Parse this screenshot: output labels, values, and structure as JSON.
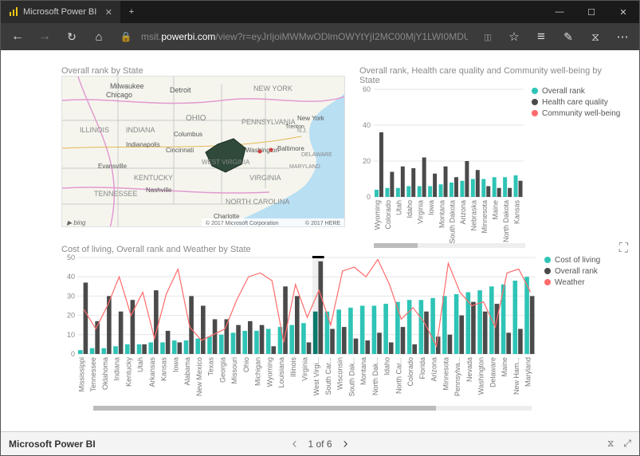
{
  "browser": {
    "tab_title": "Microsoft Power BI",
    "url_prefix": "msit.",
    "url_host": "powerbi.com",
    "url_path": "/view?r=eyJrIjoiMWMwODlmOWYtYjI2MC00MjY1LWI0MDUtYmNkODRiMTU",
    "window_min": "—",
    "window_max": "☐",
    "window_close": "✕",
    "new_tab": "+",
    "tab_close": "✕",
    "nav_back": "←",
    "nav_fwd": "→",
    "nav_reload": "↻",
    "nav_home": "⌂",
    "nav_lock": "🔒",
    "tb_book": "▯▯",
    "tb_star": "☆",
    "tb_menu": "≡",
    "tb_note": "✎",
    "tb_bell": "⧖",
    "tb_more": "⋯"
  },
  "pager": {
    "title": "Microsoft Power BI",
    "prev": "‹",
    "page": "1 of 6",
    "next": "›",
    "bot": "⧖",
    "full": "⤢"
  },
  "map_tile": {
    "title": "Overall rank by State",
    "credits1": "© 2017 Microsoft Corporation",
    "credits2": "© 2017 HERE",
    "bing": "▶ bing",
    "labels": {
      "milwaukee": "Milwaukee",
      "chicago": "Chicago",
      "detroit": "Detroit",
      "newyork": "NEW YORK",
      "illinois": "ILLINOIS",
      "indiana": "INDIANA",
      "ohio": "OHIO",
      "columbus": "Columbus",
      "pennsylvania": "PENNSYLVANIA",
      "indianapolis": "Indianapolis",
      "cincinnati": "Cincinnati",
      "trenton": "Trenton",
      "nj": "N.J.",
      "newyorkcity": "New York",
      "washington": "Washington",
      "baltimore": "Baltimore",
      "delaware": "DELAWARE",
      "evansville": "Evansville",
      "westvirginia": "WEST VIRGINIA",
      "maryland": "MARYLAND",
      "kentucky": "KENTUCKY",
      "virginia": "VIRGINIA",
      "tennessee": "TENNESSEE",
      "nashville": "Nashville",
      "northcarolina": "NORTH CAROLINA",
      "charlotte": "Charlotte"
    },
    "colors": {
      "water": "#b8dff2",
      "land": "#f5f5ee",
      "road": "#e29ad0",
      "road2": "#e6b852",
      "border": "#c9c9c9",
      "highlight": "#2f4a3a"
    }
  },
  "chart2": {
    "title": "Overall rank, Health care quality and Community well-being by State",
    "ylim": [
      0,
      60
    ],
    "yticks": [
      0,
      20,
      40,
      60
    ],
    "gridColor": "#e6e6e6",
    "barGap": 2,
    "legend": [
      {
        "label": "Overall rank",
        "color": "#2ec4b6"
      },
      {
        "label": "Health care quality",
        "color": "#4a4a4a"
      },
      {
        "label": "Community well-being",
        "color": "#ff6b6b"
      }
    ],
    "categories": [
      "Wyoming",
      "Colorado",
      "Utah",
      "Idaho",
      "Virginia",
      "Iowa",
      "Montana",
      "South Dakota",
      "Arizona",
      "Nebraska",
      "Minnesota",
      "Maine",
      "North Dakota",
      "Kansas"
    ],
    "series": {
      "overall": [
        4,
        5,
        5,
        6,
        6,
        6,
        7,
        8,
        9,
        10,
        10,
        11,
        11,
        12
      ],
      "health": [
        36,
        14,
        17,
        16,
        22,
        13,
        17,
        11,
        20,
        15,
        6,
        5,
        5,
        9
      ]
    }
  },
  "chart3": {
    "title": "Cost of living, Overall rank and Weather by State",
    "ylim": [
      0,
      50
    ],
    "yticks": [
      0,
      10,
      20,
      30,
      40,
      50
    ],
    "gridColor": "#e6e6e6",
    "legend": [
      {
        "label": "Cost of living",
        "color": "#2ec4b6"
      },
      {
        "label": "Overall rank",
        "color": "#4a4a4a"
      },
      {
        "label": "Weather",
        "color": "#ff6b6b"
      }
    ],
    "categories": [
      "Mississippi",
      "Tennessee",
      "Oklahoma",
      "Indiana",
      "Kentucky",
      "Utah",
      "Arkansas",
      "Kansas",
      "Iowa",
      "Alabama",
      "New Mexico",
      "Texas",
      "Georgia",
      "Missouri",
      "Ohio",
      "Michigan",
      "Wyoming",
      "Louisiana",
      "Illinois",
      "Virginia",
      "West Virgi...",
      "South Car...",
      "Wisconsin",
      "South Dak...",
      "Montana",
      "North Dak...",
      "Idaho",
      "North Car...",
      "Colorado",
      "Florida",
      "Arizona",
      "Minnesota",
      "Pennsylva...",
      "Nevada",
      "Washington",
      "Delaware",
      "Maine",
      "New Ham...",
      "Maryland"
    ],
    "series": {
      "cost": [
        2,
        3,
        3,
        4,
        5,
        5,
        6,
        6,
        7,
        7,
        8,
        9,
        10,
        11,
        12,
        12,
        13,
        14,
        15,
        16,
        22,
        22,
        23,
        24,
        25,
        25,
        26,
        27,
        28,
        28,
        29,
        30,
        31,
        32,
        33,
        35,
        36,
        38,
        40
      ],
      "overall": [
        37,
        17,
        30,
        22,
        28,
        5,
        33,
        12,
        6,
        30,
        25,
        18,
        18,
        15,
        17,
        15,
        4,
        35,
        30,
        6,
        48,
        13,
        14,
        8,
        7,
        11,
        6,
        14,
        5,
        22,
        9,
        10,
        20,
        27,
        22,
        26,
        11,
        13,
        30
      ],
      "weather": [
        23,
        13,
        25,
        40,
        20,
        32,
        8,
        31,
        44,
        14,
        7,
        10,
        13,
        28,
        40,
        42,
        38,
        6,
        36,
        19,
        33,
        15,
        43,
        45,
        40,
        49,
        36,
        18,
        24,
        16,
        4,
        47,
        32,
        25,
        27,
        14,
        42,
        44,
        32
      ]
    }
  },
  "focus_icon": "⛶"
}
